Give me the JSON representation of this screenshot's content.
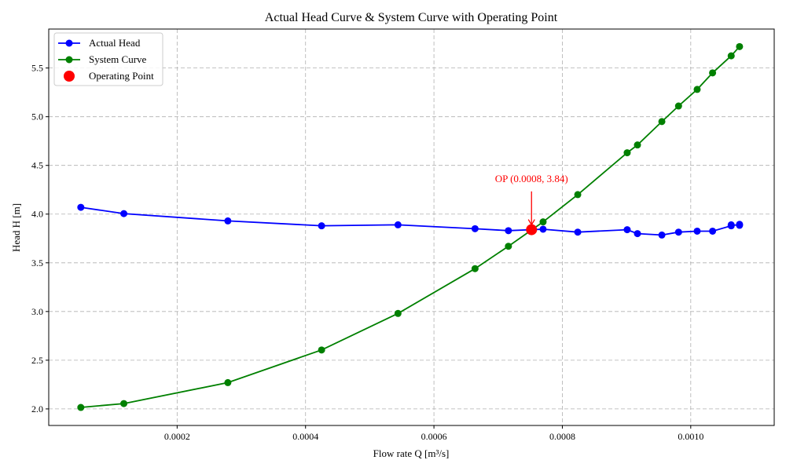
{
  "chart_data": {
    "type": "line",
    "title": "Actual Head Curve & System Curve with Operating Point",
    "xlabel": "Flow rate Q [m³/s]",
    "ylabel": "Head H [m]",
    "xlim": [
      0.0,
      0.00113
    ],
    "ylim": [
      1.83,
      5.9
    ],
    "xticks": [
      0.0002,
      0.0004,
      0.0006,
      0.0008,
      0.001
    ],
    "xtick_labels": [
      "0.0002",
      "0.0004",
      "0.0006",
      "0.0008",
      "0.0010"
    ],
    "yticks": [
      2.0,
      2.5,
      3.0,
      3.5,
      4.0,
      4.5,
      5.0,
      5.5
    ],
    "ytick_labels": [
      "2.0",
      "2.5",
      "3.0",
      "3.5",
      "4.0",
      "4.5",
      "5.0",
      "5.5"
    ],
    "grid": true,
    "legend_position": "top-left",
    "series": [
      {
        "name": "Actual Head",
        "color": "#0000ff",
        "points": [
          [
            5e-05,
            4.07
          ],
          [
            0.000117,
            4.005
          ],
          [
            0.000279,
            3.93
          ],
          [
            0.000425,
            3.88
          ],
          [
            0.000544,
            3.89
          ],
          [
            0.000664,
            3.85
          ],
          [
            0.000716,
            3.83
          ],
          [
            0.00077,
            3.845
          ],
          [
            0.000824,
            3.815
          ],
          [
            0.000901,
            3.84
          ],
          [
            0.000917,
            3.8
          ],
          [
            0.000955,
            3.785
          ],
          [
            0.000981,
            3.815
          ],
          [
            0.00101,
            3.825
          ],
          [
            0.001034,
            3.825
          ],
          [
            0.001063,
            3.88
          ],
          [
            0.001063,
            3.89
          ],
          [
            0.001076,
            3.885
          ],
          [
            0.001076,
            3.895
          ]
        ]
      },
      {
        "name": "System Curve",
        "color": "#008000",
        "points": [
          [
            5e-05,
            2.015
          ],
          [
            0.000117,
            2.055
          ],
          [
            0.000279,
            2.27
          ],
          [
            0.000425,
            2.605
          ],
          [
            0.000544,
            2.98
          ],
          [
            0.000664,
            3.44
          ],
          [
            0.000716,
            3.67
          ],
          [
            0.00077,
            3.92
          ],
          [
            0.000824,
            4.2
          ],
          [
            0.000901,
            4.63
          ],
          [
            0.000917,
            4.71
          ],
          [
            0.000955,
            4.95
          ],
          [
            0.000981,
            5.11
          ],
          [
            0.00101,
            5.28
          ],
          [
            0.001034,
            5.45
          ],
          [
            0.001063,
            5.625
          ],
          [
            0.001076,
            5.72
          ]
        ]
      }
    ],
    "operating_point": {
      "name": "Operating Point",
      "color": "#ff0000",
      "x": 0.000752,
      "y": 3.84
    },
    "annotation": {
      "text": "OP (0.0008, 3.84)",
      "color": "#ff0000",
      "text_x": 0.000752,
      "text_y": 4.33
    }
  }
}
